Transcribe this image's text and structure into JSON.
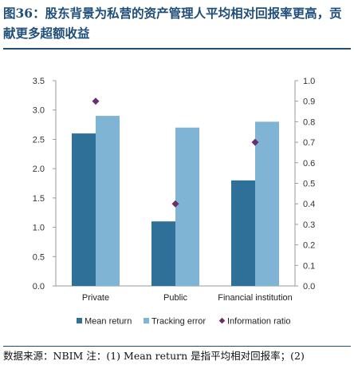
{
  "header": {
    "title": "图36：股东背景为私营的资产管理人平均相对回报率更高，贡献更多超额收益"
  },
  "footer": {
    "source": "数据来源：NBIM   注：(1) Mean return 是指平均相对回报率；(2)"
  },
  "chart_data": {
    "type": "bar",
    "categories": [
      "Private",
      "Public",
      "Financial institution"
    ],
    "series": [
      {
        "name": "Mean return",
        "axis": "left",
        "kind": "bar",
        "color": "#2e7098",
        "values": [
          2.6,
          1.1,
          1.8
        ]
      },
      {
        "name": "Tracking error",
        "axis": "left",
        "kind": "bar",
        "color": "#7fb4d4",
        "values": [
          2.9,
          2.7,
          2.8
        ]
      },
      {
        "name": "Information ratio",
        "axis": "right",
        "kind": "marker",
        "color": "#6b2f6b",
        "values": [
          0.9,
          0.4,
          0.7
        ]
      }
    ],
    "left_axis": {
      "min": 0,
      "max": 3.5,
      "ticks": [
        "0.0",
        "0.5",
        "1.0",
        "1.5",
        "2.0",
        "2.5",
        "3.0",
        "3.5"
      ]
    },
    "right_axis": {
      "min": 0,
      "max": 1.0,
      "ticks": [
        "0.0",
        "0.1",
        "0.2",
        "0.3",
        "0.4",
        "0.5",
        "0.6",
        "0.7",
        "0.8",
        "0.9",
        "1.0"
      ]
    },
    "grid": false,
    "legend_position": "bottom"
  }
}
